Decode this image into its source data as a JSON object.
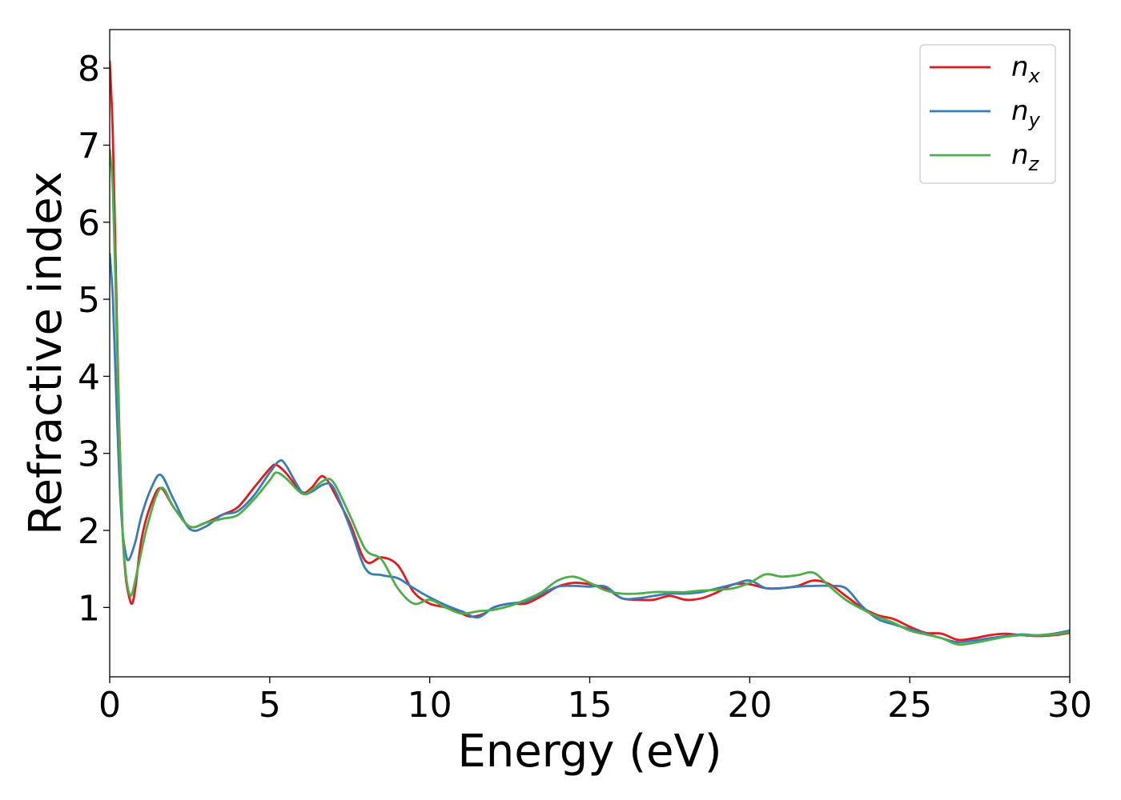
{
  "chart_data": {
    "type": "line",
    "title": "",
    "xlabel": "Energy (eV)",
    "ylabel": "Refractive index",
    "xlim": [
      0,
      30
    ],
    "ylim": [
      0.1,
      8.5
    ],
    "xticks": [
      0,
      5,
      10,
      15,
      20,
      25,
      30
    ],
    "yticks": [
      1,
      2,
      3,
      4,
      5,
      6,
      7,
      8
    ],
    "grid": false,
    "legend_position": "top-right",
    "series": [
      {
        "name": "n",
        "subscript": "x",
        "color": "#e41a1c",
        "x": [
          0,
          0.1,
          0.2,
          0.3,
          0.4,
          0.5,
          0.6,
          0.7,
          0.8,
          1.0,
          1.3,
          1.6,
          2.0,
          2.5,
          3.0,
          3.5,
          4.0,
          4.5,
          5.0,
          5.2,
          5.5,
          6.0,
          6.3,
          6.6,
          6.8,
          7.0,
          7.5,
          8.0,
          8.5,
          9.0,
          9.5,
          10.0,
          10.5,
          11.0,
          11.3,
          11.7,
          12.0,
          12.5,
          13.0,
          13.5,
          14.0,
          14.5,
          15.0,
          15.5,
          16.0,
          16.5,
          17.0,
          17.5,
          18.0,
          18.5,
          19.0,
          19.5,
          20.0,
          20.5,
          21.0,
          21.5,
          22.0,
          22.5,
          23.0,
          23.5,
          24.0,
          24.5,
          25.0,
          25.5,
          26.0,
          26.5,
          27.0,
          27.5,
          28.0,
          28.5,
          29.0,
          29.5,
          30.0
        ],
        "y": [
          8.1,
          7.1,
          5.2,
          3.3,
          2.0,
          1.4,
          1.15,
          1.05,
          1.25,
          1.9,
          2.35,
          2.55,
          2.3,
          2.05,
          2.1,
          2.2,
          2.3,
          2.55,
          2.8,
          2.85,
          2.75,
          2.5,
          2.55,
          2.7,
          2.65,
          2.5,
          2.1,
          1.6,
          1.65,
          1.55,
          1.2,
          1.05,
          1.0,
          0.92,
          0.88,
          0.92,
          1.0,
          1.05,
          1.05,
          1.15,
          1.27,
          1.32,
          1.3,
          1.25,
          1.12,
          1.1,
          1.1,
          1.15,
          1.1,
          1.12,
          1.2,
          1.3,
          1.3,
          1.25,
          1.25,
          1.28,
          1.35,
          1.3,
          1.15,
          1.0,
          0.9,
          0.85,
          0.75,
          0.67,
          0.66,
          0.58,
          0.6,
          0.64,
          0.66,
          0.64,
          0.63,
          0.64,
          0.67
        ]
      },
      {
        "name": "n",
        "subscript": "y",
        "color": "#377eb8",
        "x": [
          0,
          0.1,
          0.2,
          0.3,
          0.4,
          0.5,
          0.6,
          0.8,
          1.0,
          1.3,
          1.6,
          2.0,
          2.5,
          3.0,
          3.5,
          4.0,
          4.5,
          5.0,
          5.3,
          5.5,
          6.0,
          6.3,
          6.7,
          7.0,
          7.5,
          8.0,
          8.5,
          9.0,
          9.5,
          10.0,
          10.5,
          11.0,
          11.5,
          12.0,
          12.5,
          13.0,
          13.5,
          14.0,
          14.5,
          15.0,
          15.5,
          16.0,
          16.5,
          17.0,
          17.5,
          18.0,
          18.5,
          19.0,
          19.5,
          20.0,
          20.5,
          21.0,
          21.5,
          22.0,
          22.5,
          23.0,
          23.5,
          24.0,
          24.5,
          25.0,
          25.5,
          26.0,
          26.5,
          27.0,
          27.5,
          28.0,
          28.5,
          29.0,
          29.5,
          30.0
        ],
        "y": [
          5.6,
          5.0,
          3.8,
          2.7,
          2.0,
          1.7,
          1.62,
          1.85,
          2.2,
          2.55,
          2.72,
          2.4,
          2.02,
          2.05,
          2.2,
          2.25,
          2.45,
          2.75,
          2.9,
          2.85,
          2.5,
          2.5,
          2.6,
          2.55,
          2.05,
          1.5,
          1.42,
          1.38,
          1.25,
          1.13,
          1.03,
          0.95,
          0.87,
          1.0,
          1.05,
          1.08,
          1.18,
          1.27,
          1.28,
          1.27,
          1.27,
          1.12,
          1.12,
          1.15,
          1.18,
          1.18,
          1.2,
          1.25,
          1.3,
          1.35,
          1.25,
          1.25,
          1.27,
          1.28,
          1.28,
          1.25,
          1.02,
          0.85,
          0.78,
          0.72,
          0.66,
          0.6,
          0.55,
          0.57,
          0.6,
          0.63,
          0.65,
          0.64,
          0.66,
          0.7
        ]
      },
      {
        "name": "n",
        "subscript": "z",
        "color": "#4daf4a",
        "x": [
          0,
          0.1,
          0.2,
          0.3,
          0.4,
          0.5,
          0.6,
          0.7,
          0.9,
          1.2,
          1.6,
          2.0,
          2.5,
          3.0,
          3.5,
          4.0,
          4.5,
          5.0,
          5.2,
          5.5,
          6.0,
          6.3,
          6.7,
          7.0,
          7.5,
          8.0,
          8.5,
          9.0,
          9.5,
          10.0,
          10.5,
          11.0,
          11.5,
          12.0,
          12.5,
          13.0,
          13.5,
          14.0,
          14.5,
          15.0,
          15.5,
          16.0,
          16.5,
          17.0,
          17.5,
          18.0,
          18.5,
          19.0,
          19.5,
          20.0,
          20.5,
          21.0,
          21.5,
          22.0,
          22.5,
          23.0,
          23.5,
          24.0,
          24.5,
          25.0,
          25.5,
          26.0,
          26.5,
          27.0,
          27.5,
          28.0,
          28.5,
          29.0,
          29.5,
          30.0
        ],
        "y": [
          6.95,
          6.4,
          4.9,
          3.2,
          2.0,
          1.45,
          1.2,
          1.18,
          1.55,
          2.1,
          2.55,
          2.3,
          2.05,
          2.1,
          2.15,
          2.2,
          2.4,
          2.65,
          2.75,
          2.68,
          2.48,
          2.52,
          2.65,
          2.62,
          2.2,
          1.75,
          1.62,
          1.25,
          1.05,
          1.1,
          1.0,
          0.92,
          0.95,
          0.97,
          1.02,
          1.1,
          1.2,
          1.35,
          1.4,
          1.32,
          1.22,
          1.18,
          1.18,
          1.2,
          1.2,
          1.2,
          1.22,
          1.23,
          1.25,
          1.32,
          1.43,
          1.4,
          1.42,
          1.45,
          1.27,
          1.1,
          0.98,
          0.88,
          0.8,
          0.7,
          0.65,
          0.6,
          0.52,
          0.54,
          0.58,
          0.62,
          0.64,
          0.64,
          0.65,
          0.68
        ]
      }
    ]
  }
}
